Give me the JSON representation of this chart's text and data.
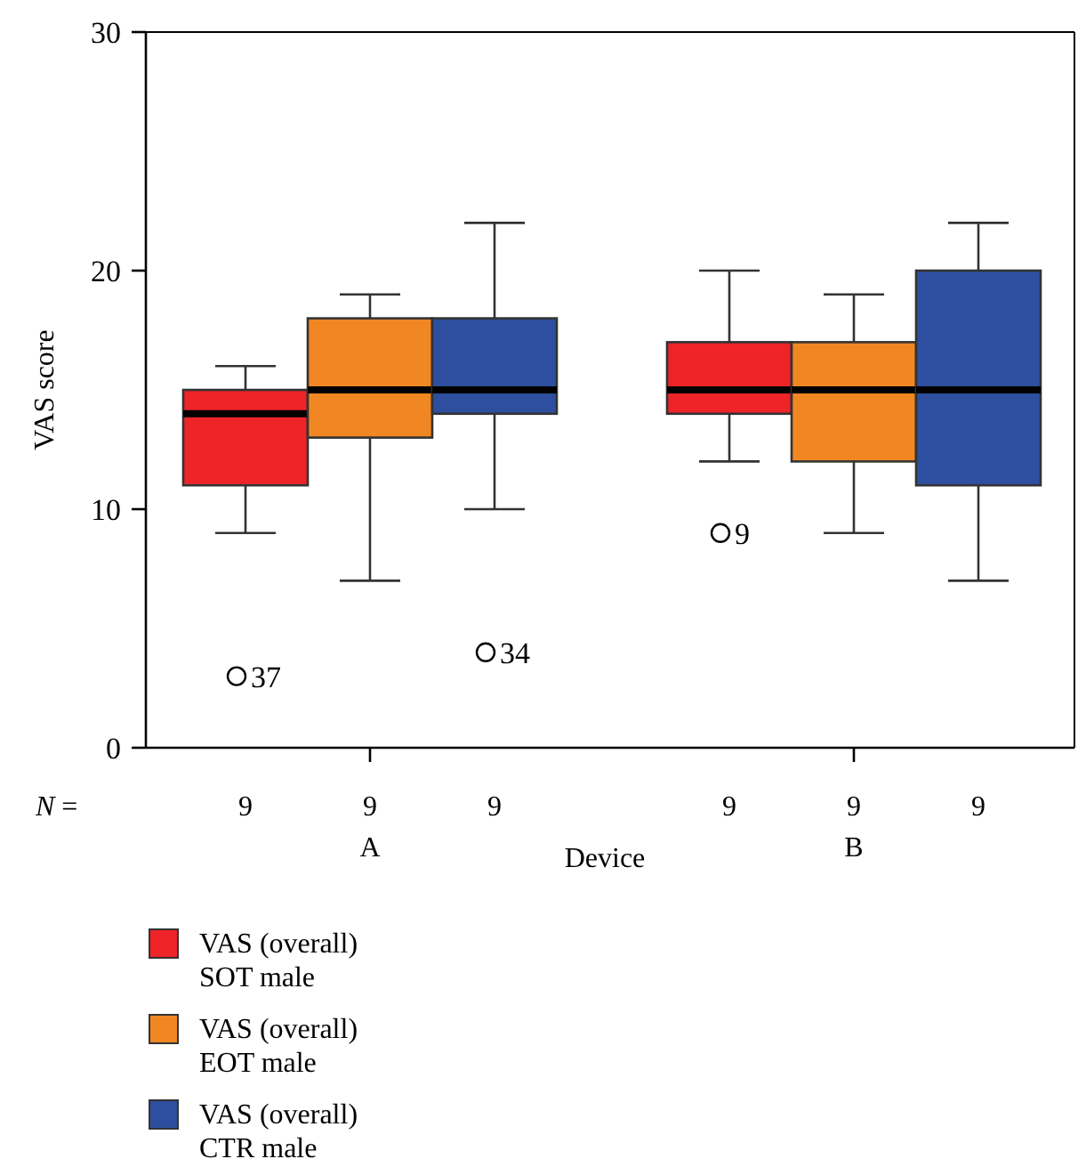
{
  "chart_data": {
    "type": "box",
    "xlabel": "Device",
    "ylabel": "VAS score",
    "categories": [
      "A",
      "B"
    ],
    "ylim": [
      0,
      30
    ],
    "yticks": [
      0,
      10,
      20,
      30
    ],
    "grid": false,
    "legend": "bottom left",
    "series": [
      {
        "name": "VAS (overall) SOT male",
        "color": "#ee2428",
        "boxes": [
          {
            "low": 9,
            "q1": 11,
            "median": 14,
            "q3": 15,
            "high": 16,
            "outliers": [
              3
            ]
          },
          {
            "low": 12,
            "q1": 14,
            "median": 15,
            "q3": 17,
            "high": 20,
            "outliers": [
              9
            ]
          }
        ]
      },
      {
        "name": "VAS (overall) EOT male",
        "color": "#f08722",
        "boxes": [
          {
            "low": 7,
            "q1": 13,
            "median": 15,
            "q3": 18,
            "high": 19
          },
          {
            "low": 9,
            "q1": 12,
            "median": 15,
            "q3": 17,
            "high": 19
          }
        ]
      },
      {
        "name": "VAS (overall) CTR male",
        "color": "#2e4f9f",
        "boxes": [
          {
            "low": 10,
            "q1": 14,
            "median": 15,
            "q3": 18,
            "high": 22,
            "outliers": [
              4
            ]
          },
          {
            "low": 7,
            "q1": 11,
            "median": 15,
            "q3": 20,
            "high": 22
          }
        ]
      }
    ],
    "annotations": [
      "37",
      "34",
      "9",
      "N =",
      "9",
      "9",
      "9",
      "9",
      "9",
      "9"
    ]
  }
}
